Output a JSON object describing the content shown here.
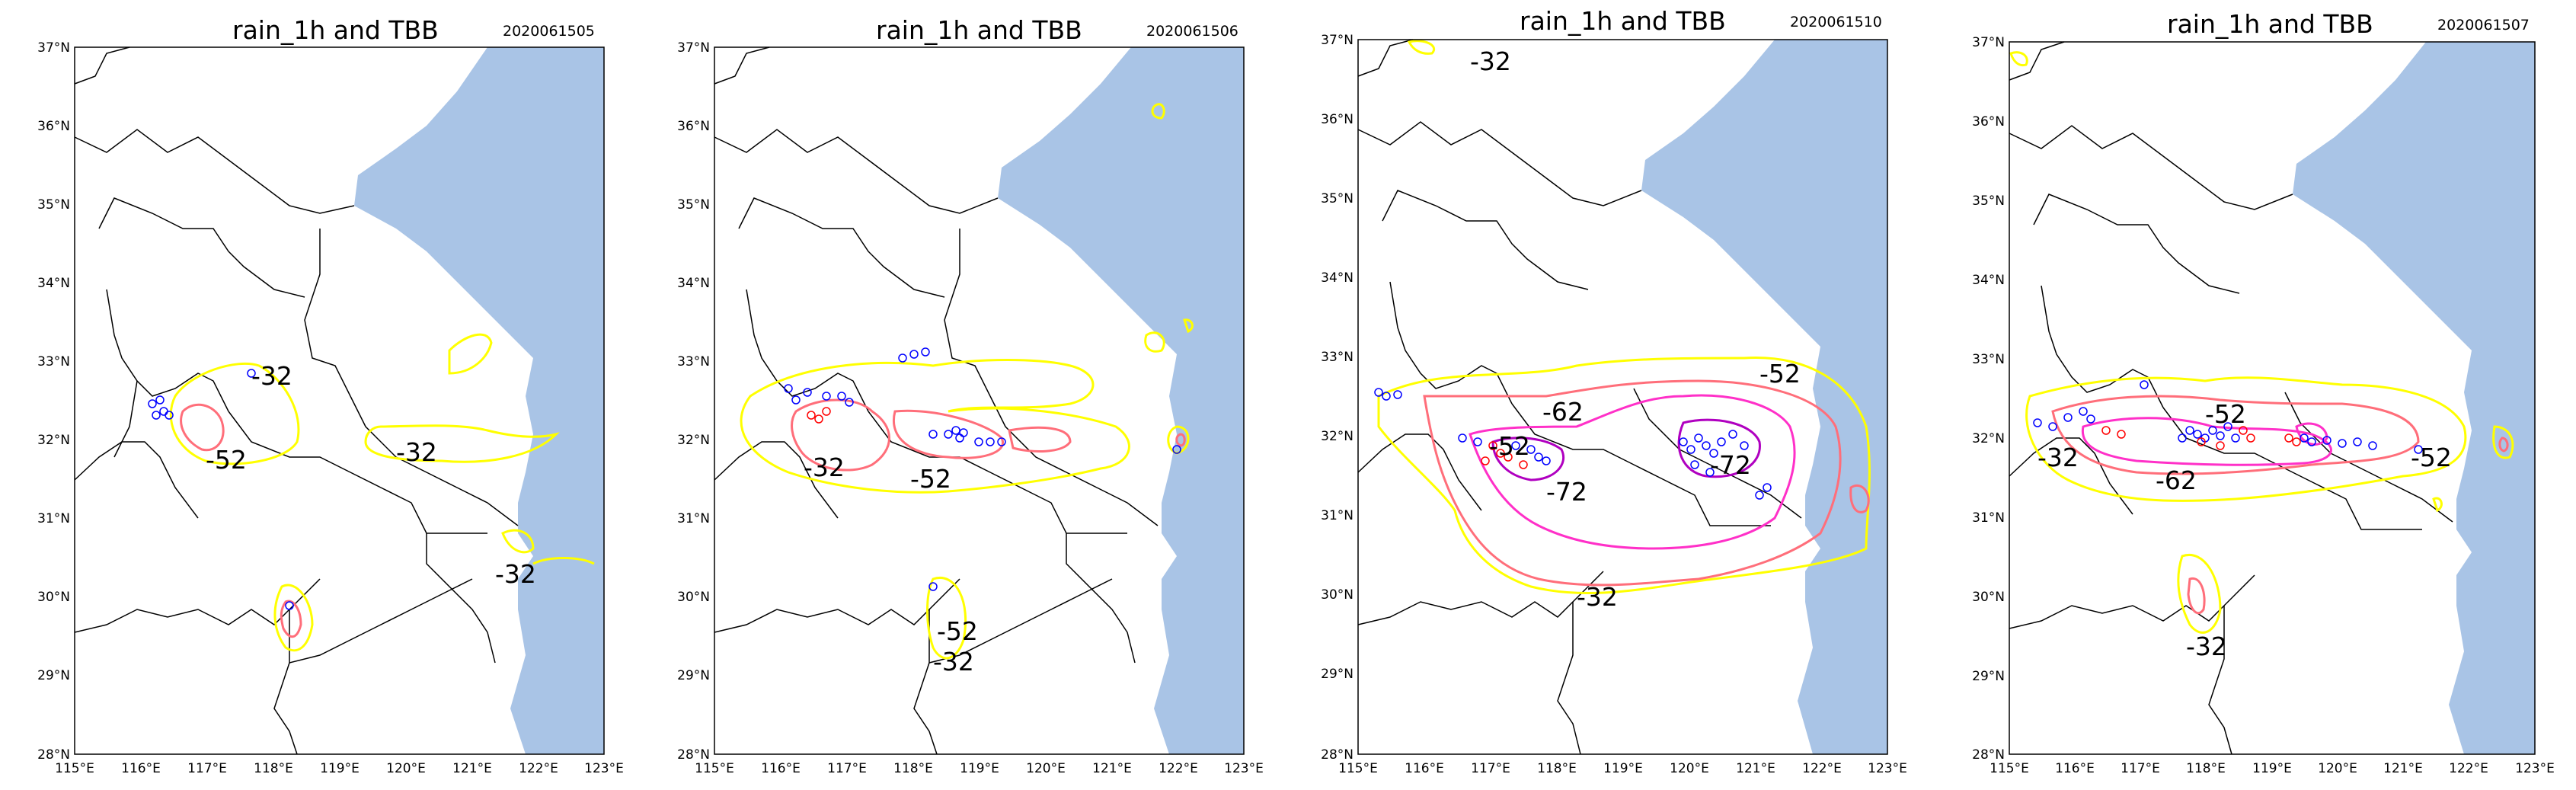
{
  "figure": {
    "colors": {
      "sea": "#a9c4e6",
      "land": "#ffffff",
      "border": "#000000",
      "contour_minus32": "#ffff00",
      "contour_minus52": "#ff6e7a",
      "contour_minus62": "#ff30c8",
      "contour_minus72": "#b000c0",
      "rain_low_marker": "#0000ff",
      "rain_high_marker": "#ff0000"
    },
    "axes": {
      "lon_ticks": [
        "115°E",
        "116°E",
        "117°E",
        "118°E",
        "119°E",
        "120°E",
        "121°E",
        "122°E",
        "123°E"
      ],
      "lat_ticks": [
        "37°N",
        "36°N",
        "35°N",
        "34°N",
        "33°N",
        "32°N",
        "31°N",
        "30°N",
        "29°N",
        "28°N"
      ],
      "lon_range": [
        115,
        123
      ],
      "lat_range": [
        28,
        37
      ]
    },
    "panels": [
      {
        "title": "rain_1h and TBB",
        "date": "2020061505",
        "contour_labels": [
          {
            "text": "-32",
            "lon": 118.0,
            "lat": 32.9
          },
          {
            "text": "-52",
            "lon": 117.6,
            "lat": 31.8
          },
          {
            "text": "-32",
            "lon": 120.1,
            "lat": 31.9
          },
          {
            "text": "-32",
            "lon": 121.3,
            "lat": 30.3
          }
        ]
      },
      {
        "title": "rain_1h and TBB",
        "date": "2020061506",
        "contour_labels": [
          {
            "text": "-32",
            "lon": 116.9,
            "lat": 31.7
          },
          {
            "text": "-52",
            "lon": 118.3,
            "lat": 31.6
          },
          {
            "text": "-52",
            "lon": 118.5,
            "lat": 29.6
          },
          {
            "text": "-32",
            "lon": 118.5,
            "lat": 29.2
          }
        ]
      },
      {
        "title": "rain_1h and TBB",
        "date": "2020061510",
        "contour_labels": [
          {
            "text": "-32",
            "lon": 117.1,
            "lat": 36.7
          },
          {
            "text": "-62",
            "lon": 118.3,
            "lat": 32.4
          },
          {
            "text": "-52",
            "lon": 117.5,
            "lat": 31.9
          },
          {
            "text": "-72",
            "lon": 118.7,
            "lat": 31.4
          },
          {
            "text": "-72",
            "lon": 120.9,
            "lat": 31.7
          },
          {
            "text": "-52",
            "lon": 121.6,
            "lat": 32.8
          },
          {
            "text": "-32",
            "lon": 118.7,
            "lat": 30.2
          }
        ]
      },
      {
        "title": "rain_1h and TBB",
        "date": "2020061507",
        "contour_labels": [
          {
            "text": "-32",
            "lon": 116.2,
            "lat": 31.7
          },
          {
            "text": "-52",
            "lon": 118.8,
            "lat": 32.3
          },
          {
            "text": "-62",
            "lon": 117.8,
            "lat": 31.5
          },
          {
            "text": "-52",
            "lon": 121.3,
            "lat": 31.8
          },
          {
            "text": "-32",
            "lon": 119.1,
            "lat": 29.4
          }
        ]
      }
    ]
  }
}
